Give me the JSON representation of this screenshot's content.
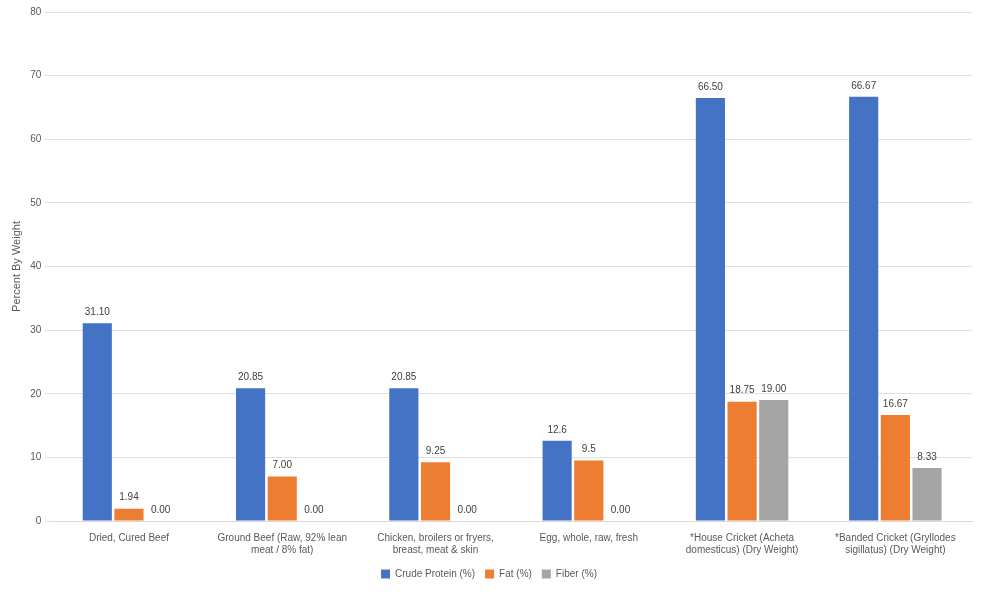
{
  "chart_data": {
    "type": "bar",
    "y_label": "Percent By Weight",
    "categories": [
      "Dried, Cured Beef",
      "Ground Beef (Raw, 92% lean meat / 8% fat)",
      "Chicken, broilers or fryers, breast, meat & skin",
      "Egg, whole, raw, fresh",
      "*House Cricket (Acheta domesticus) (Dry Weight)",
      "*Banded Cricket (Gryllodes sigillatus) (Dry Weight)"
    ],
    "series": [
      {
        "name": "Crude Protein (%)",
        "color": "#4472c4",
        "values": [
          31.1,
          20.85,
          20.85,
          12.6,
          66.5,
          66.67
        ],
        "value_labels": [
          "31.10",
          "20.85",
          "20.85",
          "12.6",
          "66.50",
          "66.67"
        ]
      },
      {
        "name": "Fat (%)",
        "color": "#ed7d31",
        "values": [
          1.94,
          7,
          9.25,
          9.5,
          18.75,
          16.67
        ],
        "value_labels": [
          "1.94",
          "7.00",
          "9.25",
          "9.5",
          "18.75",
          "16.67"
        ]
      },
      {
        "name": "Fiber (%)",
        "color": "#a5a5a5",
        "values": [
          0,
          0,
          0,
          0,
          19,
          8.33
        ],
        "value_labels": [
          "0.00",
          "0.00",
          "0.00",
          "0.00",
          "19.00",
          "8.33"
        ]
      }
    ],
    "ylim": [
      0,
      80
    ],
    "yticks": [
      0,
      10,
      20,
      30,
      40,
      50,
      60,
      70,
      80
    ],
    "grid": true,
    "legend": "bottom",
    "data_labels": true
  }
}
